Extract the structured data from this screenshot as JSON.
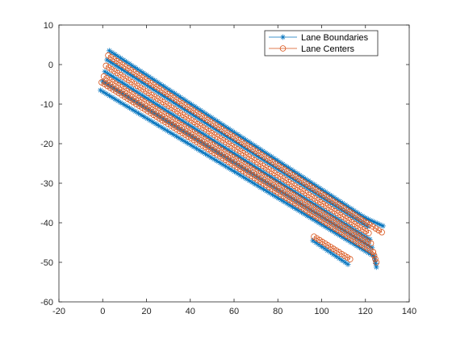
{
  "chart_data": {
    "type": "line",
    "title": "",
    "xlabel": "",
    "ylabel": "",
    "xlim": [
      -20,
      140
    ],
    "ylim": [
      -60,
      10
    ],
    "xticks": [
      -20,
      0,
      20,
      40,
      60,
      80,
      100,
      120,
      140
    ],
    "yticks": [
      -60,
      -50,
      -40,
      -30,
      -20,
      -10,
      0,
      10
    ],
    "grid": false,
    "legend_position": "top-right",
    "series": [
      {
        "name": "Lane Boundaries",
        "color": "#0072BD",
        "marker": "asterisk",
        "lines": [
          {
            "x": [
              3,
              120
            ],
            "y": [
              3.5,
              -38.8
            ]
          },
          {
            "x": [
              2,
              121
            ],
            "y": [
              1.2,
              -41.0
            ]
          },
          {
            "x": [
              1,
              122
            ],
            "y": [
              -1.8,
              -44.2
            ]
          },
          {
            "x": [
              0,
              123
            ],
            "y": [
              -4.2,
              -46.3
            ]
          },
          {
            "x": [
              -1,
              124
            ],
            "y": [
              -6.5,
              -48.5
            ]
          },
          {
            "x": [
              96,
              112
            ],
            "y": [
              -44.5,
              -50.5
            ]
          },
          {
            "x": [
              120,
              128
            ],
            "y": [
              -38.8,
              -40.8
            ]
          },
          {
            "x": [
              124,
              125
            ],
            "y": [
              -48.5,
              -51.2
            ]
          }
        ]
      },
      {
        "name": "Lane Centers",
        "color": "#D95319",
        "marker": "circle",
        "lines": [
          {
            "x": [
              2.5,
              120.5
            ],
            "y": [
              2.3,
              -40.0
            ]
          },
          {
            "x": [
              1.5,
              121.5
            ],
            "y": [
              -0.3,
              -42.6
            ]
          },
          {
            "x": [
              0.5,
              122.5
            ],
            "y": [
              -3.0,
              -45.2
            ]
          },
          {
            "x": [
              -0.5,
              123.5
            ],
            "y": [
              -4.5,
              -47.4
            ]
          },
          {
            "x": [
              96.5,
              113
            ],
            "y": [
              -43.5,
              -49.2
            ]
          },
          {
            "x": [
              120.5,
              127.5
            ],
            "y": [
              -40.0,
              -42.4
            ]
          },
          {
            "x": [
              123.5,
              125
            ],
            "y": [
              -47.4,
              -50.0
            ]
          }
        ]
      }
    ]
  },
  "legend": {
    "entries": [
      {
        "label": "Lane Boundaries",
        "color": "#0072BD",
        "marker": "asterisk"
      },
      {
        "label": "Lane Centers",
        "color": "#D95319",
        "marker": "circle"
      }
    ]
  }
}
